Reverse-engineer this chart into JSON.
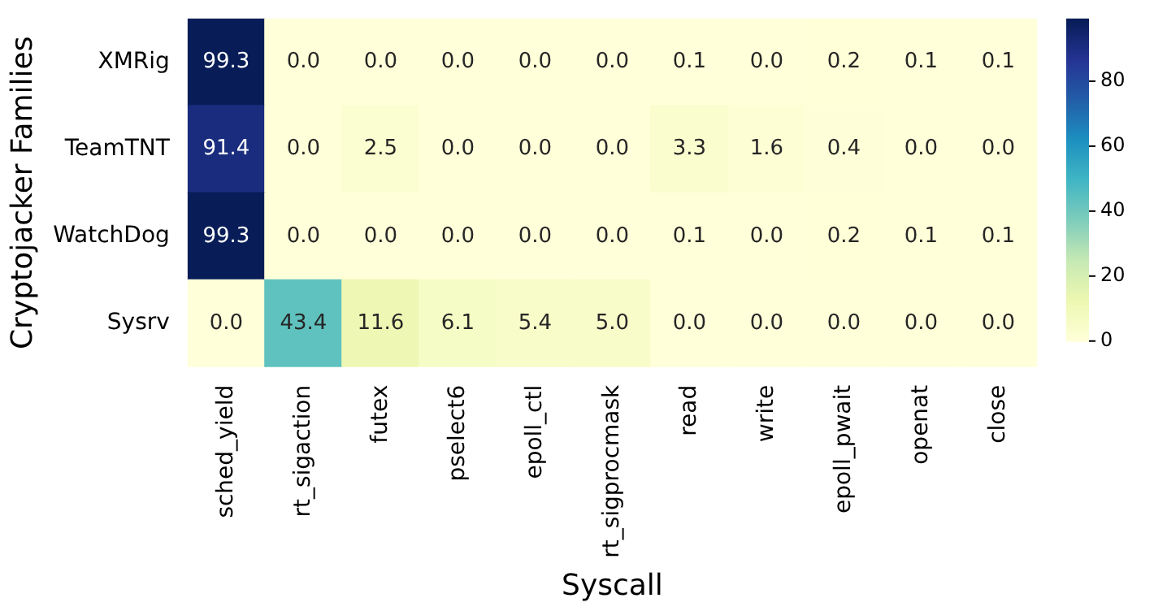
{
  "chart_data": {
    "type": "heatmap",
    "xlabel": "Syscall",
    "ylabel": "Cryptojacker Families",
    "categories": [
      "sched_yield",
      "rt_sigaction",
      "futex",
      "pselect6",
      "epoll_ctl",
      "rt_sigprocmask",
      "read",
      "write",
      "epoll_pwait",
      "openat",
      "close"
    ],
    "y_categories": [
      "XMRig",
      "TeamTNT",
      "WatchDog",
      "Sysrv"
    ],
    "cells": [
      [
        99.3,
        0,
        0,
        0,
        0,
        0,
        0.1,
        0,
        0.2,
        0.1,
        0.1
      ],
      [
        91.4,
        0,
        2.5,
        0,
        0,
        0,
        3.3,
        1.6,
        0.4,
        0,
        0
      ],
      [
        99.3,
        0,
        0,
        0,
        0,
        0,
        0.1,
        0,
        0.2,
        0.1,
        0.1
      ],
      [
        0,
        43.4,
        11.6,
        6.1,
        5.4,
        5.0,
        0,
        0,
        0,
        0,
        0
      ]
    ],
    "cell_labels": [
      [
        "99.3",
        "0.0",
        "0.0",
        "0.0",
        "0.0",
        "0.0",
        "0.1",
        "0.0",
        "0.2",
        "0.1",
        "0.1"
      ],
      [
        "91.4",
        "0.0",
        "2.5",
        "0.0",
        "0.0",
        "0.0",
        "3.3",
        "1.6",
        "0.4",
        "0.0",
        "0.0"
      ],
      [
        "99.3",
        "0.0",
        "0.0",
        "0.0",
        "0.0",
        "0.0",
        "0.1",
        "0.0",
        "0.2",
        "0.1",
        "0.1"
      ],
      [
        "0.0",
        "43.4",
        "11.6",
        "6.1",
        "5.4",
        "5.0",
        "0.0",
        "0.0",
        "0.0",
        "0.0",
        "0.0"
      ]
    ],
    "clim": [
      0,
      99.3
    ],
    "cticks": [
      0,
      20,
      40,
      60,
      80
    ]
  }
}
